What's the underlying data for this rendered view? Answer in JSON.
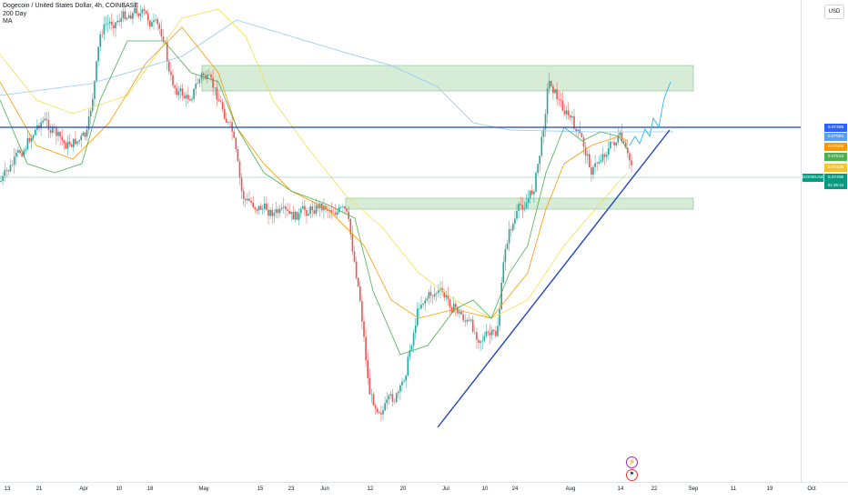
{
  "header": {
    "title": "Dogecoin / United States Dollar, 4h, COINBASE",
    "indicator_1": "200 Day",
    "indicator_2": "MA"
  },
  "currency_button": "USD",
  "symbol_tag": "DOGEUSD",
  "countdown": "01:36:44",
  "price_labels": [
    {
      "value": "0.07488",
      "color": "#2962ff"
    },
    {
      "value": "0.07594",
      "color": "#5b9cf6"
    },
    {
      "value": "0.07558",
      "color": "#ff9800"
    },
    {
      "value": "0.07513",
      "color": "#4caf50"
    },
    {
      "value": "0.07439",
      "color": "#f4c430"
    },
    {
      "value": "0.07405",
      "color": "#089981"
    }
  ],
  "time_axis": [
    "13",
    "21",
    "Apr",
    "10",
    "18",
    "May",
    "15",
    "23",
    "Jun",
    "12",
    "20",
    "Jul",
    "10",
    "24",
    "Aug",
    "14",
    "22",
    "Sep",
    "11",
    "19",
    "Oct"
  ],
  "event_icons": [
    "lightning-icon",
    "us-flag-icon"
  ],
  "colors": {
    "up": "#26a69a",
    "down": "#ef5350",
    "ma_200": "#90caf9",
    "ma_fast": "#4caf50",
    "ma_mid": "#ff9800",
    "ma_slow": "#f4e04d",
    "trendline": "#2140c4",
    "zone": "#c8e6c9"
  },
  "chart_data": {
    "type": "candlestick",
    "title": "Dogecoin / United States Dollar, 4h, COINBASE",
    "interval": "4h",
    "exchange": "COINBASE",
    "last_price": 0.07405,
    "resistance_level": 0.07488,
    "ma_values": {
      "blue": 0.07594,
      "orange": 0.07558,
      "green": 0.07513,
      "yellow": 0.07439
    },
    "y_axis_scale": "price (USD)",
    "annotations": [
      "upper supply zone",
      "lower demand zone",
      "ascending trendline",
      "horizontal resistance line",
      "projected path"
    ]
  }
}
